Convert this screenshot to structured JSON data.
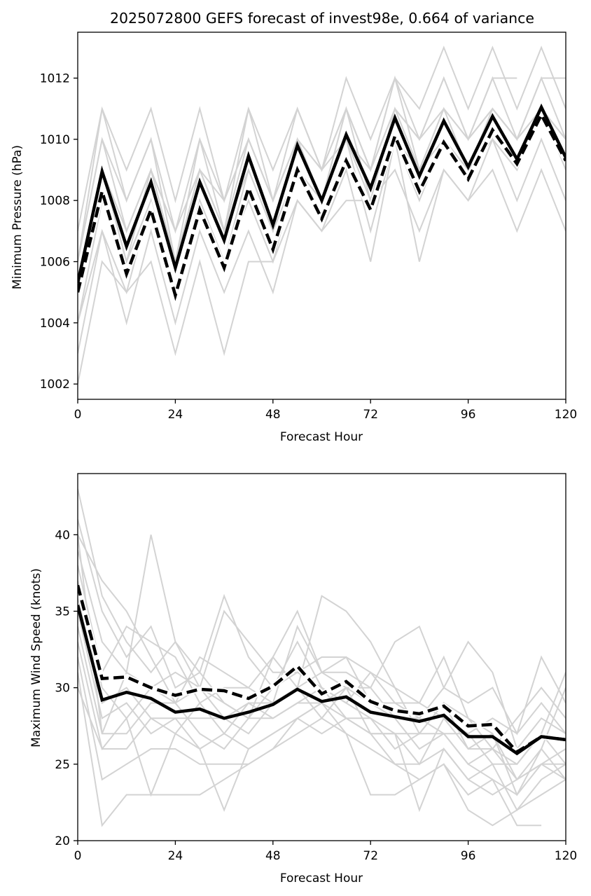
{
  "chart_data": [
    {
      "type": "line",
      "title": "2025072800 GEFS forecast of invest98e, 0.664 of variance",
      "xlabel": "Forecast Hour",
      "ylabel": "Minimum Pressure (hPa)",
      "xlim": [
        0,
        120
      ],
      "ylim": [
        1001.5,
        1013.5
      ],
      "xticks": [
        0,
        24,
        48,
        72,
        96,
        120
      ],
      "yticks": [
        1002,
        1004,
        1006,
        1008,
        1010,
        1012
      ],
      "grid": false,
      "legend": "none",
      "x": [
        0,
        6,
        12,
        18,
        24,
        30,
        36,
        42,
        48,
        54,
        60,
        66,
        72,
        78,
        84,
        90,
        96,
        102,
        108,
        114,
        120
      ],
      "colors": {
        "members": "#d3d3d3",
        "mean": "#000000"
      },
      "series": [
        {
          "role": "ensemble-mean",
          "style": "solid",
          "values": [
            1005.3,
            1008.95,
            1006.5,
            1008.6,
            1005.8,
            1008.6,
            1006.7,
            1009.45,
            1007.2,
            1009.8,
            1008.0,
            1010.15,
            1008.4,
            1010.7,
            1008.8,
            1010.6,
            1009.1,
            1010.75,
            1009.35,
            1011.05,
            1009.4
          ]
        },
        {
          "role": "ensemble-mean-dashed",
          "style": "dashed",
          "values": [
            1005.0,
            1008.3,
            1005.6,
            1007.7,
            1004.9,
            1007.7,
            1005.8,
            1008.4,
            1006.4,
            1009.0,
            1007.4,
            1009.3,
            1007.7,
            1010.1,
            1008.3,
            1009.9,
            1008.7,
            1010.3,
            1009.2,
            1010.8,
            1009.3
          ]
        },
        {
          "role": "member",
          "values": [
            1002,
            1006,
            1005,
            1006,
            1003,
            1006,
            1003,
            1006,
            1006,
            1008,
            1007,
            1008,
            1008,
            1009,
            1007,
            1009,
            1008,
            1009,
            1007,
            1009,
            1007
          ]
        },
        {
          "role": "member",
          "values": [
            1003,
            1007,
            1004,
            1007,
            1004,
            1007,
            1005,
            1007,
            1005,
            1008,
            1007,
            1009,
            1006,
            1010,
            1006,
            1009,
            1008,
            1010,
            1008,
            1010,
            1008
          ]
        },
        {
          "role": "member",
          "values": [
            1004,
            1008,
            1006,
            1008,
            1005,
            1008,
            1006,
            1008,
            1006,
            1009,
            1008,
            1010,
            1007,
            1010,
            1008,
            1010,
            1009,
            1010,
            1009,
            1011,
            1009
          ]
        },
        {
          "role": "member",
          "values": [
            1005,
            1009,
            1007,
            1009,
            1006,
            1009,
            1007,
            1009,
            1007,
            1010,
            1008,
            1011,
            1008,
            1011,
            1009,
            1011,
            1009,
            1011,
            1010,
            1011,
            1010
          ]
        },
        {
          "role": "member",
          "values": [
            1006,
            1010,
            1008,
            1010,
            1007,
            1010,
            1008,
            1010,
            1008,
            1011,
            1009,
            1011,
            1009,
            1011,
            1010,
            1012,
            1010,
            1012,
            1010,
            1012,
            1010
          ]
        },
        {
          "role": "member",
          "values": [
            1007,
            1011,
            1009,
            1011,
            1008,
            1011,
            1008,
            1011,
            1009,
            1011,
            1009,
            1012,
            1010,
            1012,
            1011,
            1013,
            1011,
            1013,
            1011,
            1013,
            1011
          ]
        },
        {
          "role": "member",
          "values": [
            1006,
            1010,
            1007,
            1009,
            1006,
            1009,
            1007,
            1010,
            1008,
            1010,
            1009,
            1011,
            1009,
            1012,
            1010,
            1012,
            1010,
            1012,
            1012,
            null,
            null
          ]
        },
        {
          "role": "member",
          "values": [
            1005,
            1009,
            1006,
            1009,
            1007,
            1009,
            1008,
            1010,
            1008,
            1010,
            1009,
            1010,
            1009,
            1011,
            1010,
            1011,
            1010,
            1011,
            1010,
            1012,
            1012
          ]
        },
        {
          "role": "member",
          "values": [
            1004,
            1007,
            1005,
            1008,
            1005,
            1008,
            1006,
            1009,
            1007,
            1009,
            1008,
            1010,
            1008,
            1010,
            1009,
            1010,
            1009,
            1010,
            1009,
            1011,
            1010
          ]
        },
        {
          "role": "member",
          "values": [
            1006,
            1011,
            1008,
            1010,
            1006,
            1010,
            1007,
            1011,
            1008,
            1010,
            1008,
            1011,
            1009,
            1012,
            1009,
            1011,
            1010,
            1011,
            1010,
            1011,
            1010
          ]
        }
      ]
    },
    {
      "type": "line",
      "title": "",
      "xlabel": "Forecast Hour",
      "ylabel": "Maximum Wind Speed (knots)",
      "xlim": [
        0,
        120
      ],
      "ylim": [
        20,
        44
      ],
      "xticks": [
        0,
        24,
        48,
        72,
        96,
        120
      ],
      "yticks": [
        20,
        25,
        30,
        35,
        40
      ],
      "grid": false,
      "legend": "none",
      "x": [
        0,
        6,
        12,
        18,
        24,
        30,
        36,
        42,
        48,
        54,
        60,
        66,
        72,
        78,
        84,
        90,
        96,
        102,
        108,
        114,
        120
      ],
      "colors": {
        "members": "#d3d3d3",
        "mean": "#000000"
      },
      "series": [
        {
          "role": "ensemble-mean",
          "style": "solid",
          "values": [
            35.4,
            29.2,
            29.7,
            29.3,
            28.4,
            28.6,
            28.0,
            28.4,
            28.9,
            29.9,
            29.1,
            29.4,
            28.4,
            28.1,
            27.8,
            28.2,
            26.8,
            26.8,
            25.7,
            26.8,
            26.6
          ]
        },
        {
          "role": "ensemble-mean-dashed",
          "style": "dashed",
          "values": [
            36.7,
            30.6,
            30.7,
            30.0,
            29.5,
            29.9,
            29.8,
            29.3,
            30.1,
            31.4,
            29.6,
            30.4,
            29.1,
            28.5,
            28.3,
            28.8,
            27.5,
            27.6,
            25.8,
            26.8,
            26.6
          ]
        },
        {
          "role": "member",
          "values": [
            43,
            36,
            33,
            31,
            33,
            30,
            29,
            28,
            32,
            30,
            36,
            35,
            33,
            30,
            29,
            32,
            28,
            27,
            23,
            25,
            24
          ]
        },
        {
          "role": "member",
          "values": [
            41,
            35,
            32,
            34,
            30,
            31,
            36,
            32,
            30,
            33,
            30,
            29,
            31,
            29,
            28,
            30,
            29,
            30,
            27,
            32,
            29
          ]
        },
        {
          "role": "member",
          "values": [
            40,
            37,
            35,
            32,
            29,
            32,
            31,
            30,
            32,
            35,
            31,
            31,
            30,
            33,
            34,
            30,
            33,
            31,
            26,
            28,
            27
          ]
        },
        {
          "role": "member",
          "values": [
            39,
            33,
            31,
            40,
            33,
            31,
            29,
            28,
            30,
            31,
            32,
            32,
            31,
            30,
            27,
            29,
            28,
            26,
            28,
            30,
            28
          ]
        },
        {
          "role": "member",
          "values": [
            38,
            31,
            34,
            33,
            32,
            29,
            30,
            30,
            29,
            34,
            31,
            30,
            30,
            28,
            28,
            27,
            27,
            25,
            25,
            27,
            31
          ]
        },
        {
          "role": "member",
          "values": [
            37,
            30,
            28,
            30,
            31,
            30,
            35,
            33,
            31,
            31,
            30,
            29,
            28,
            27,
            27,
            29,
            26,
            27,
            24,
            26,
            30
          ]
        },
        {
          "role": "member",
          "values": [
            36,
            29,
            30,
            28,
            27,
            29,
            27,
            29,
            28,
            29,
            30,
            28,
            27,
            27,
            25,
            28,
            26,
            26,
            24,
            25,
            26
          ]
        },
        {
          "role": "member",
          "values": [
            35,
            28,
            29,
            27,
            28,
            28,
            28,
            27,
            29,
            30,
            28,
            30,
            29,
            28,
            26,
            27,
            25,
            26,
            25,
            27,
            25
          ]
        },
        {
          "role": "member",
          "values": [
            34,
            27,
            27,
            29,
            29,
            27,
            26,
            28,
            28,
            29,
            29,
            28,
            28,
            26,
            27,
            27,
            25,
            24,
            23,
            26,
            24
          ]
        },
        {
          "role": "member",
          "values": [
            33,
            26,
            26,
            28,
            28,
            26,
            27,
            26,
            27,
            28,
            27,
            28,
            27,
            25,
            25,
            26,
            24,
            25,
            22,
            24,
            25
          ]
        },
        {
          "role": "member",
          "values": [
            32,
            24,
            25,
            26,
            26,
            25,
            25,
            25,
            26,
            27,
            28,
            27,
            26,
            25,
            24,
            25,
            23,
            24,
            21,
            21,
            null
          ]
        },
        {
          "role": "member",
          "values": [
            31,
            21,
            23,
            23,
            23,
            23,
            24,
            25,
            26,
            28,
            29,
            27,
            23,
            23,
            24,
            25,
            22,
            21,
            22,
            23,
            24
          ]
        },
        {
          "role": "member",
          "values": [
            30,
            26,
            28,
            23,
            27,
            26,
            22,
            26,
            27,
            28,
            29,
            30,
            27,
            27,
            22,
            26,
            24,
            23,
            24,
            25,
            25
          ]
        },
        {
          "role": "member",
          "values": [
            40,
            27,
            31,
            30,
            29,
            30,
            28,
            29,
            29,
            30,
            31,
            32,
            29,
            29,
            29,
            28,
            27,
            28,
            27,
            29,
            27
          ]
        }
      ]
    }
  ]
}
